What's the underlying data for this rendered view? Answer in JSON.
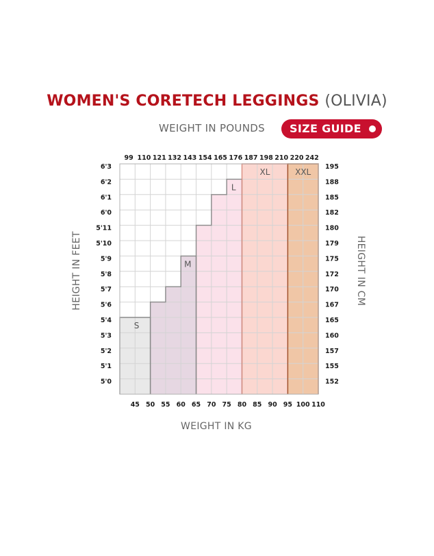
{
  "title": {
    "brand": "WOMEN'S CORETECH LEGGINGS",
    "model": "(OLIVIA)"
  },
  "subtitle": "WEIGHT IN POUNDS",
  "badge": "SIZE GUIDE",
  "chart_data": {
    "type": "heatmap",
    "x_bottom_label": "WEIGHT IN KG",
    "y_left_label": "HEIGHT IN FEET",
    "y_right_label": "HEIGHT IN CM",
    "x_kg_ticks": [
      45,
      50,
      55,
      60,
      65,
      70,
      75,
      80,
      85,
      90,
      95,
      100,
      110
    ],
    "x_lbs_ticks": [
      99,
      110,
      121,
      132,
      143,
      154,
      165,
      176,
      187,
      198,
      210,
      220,
      242
    ],
    "y_feet_ticks": [
      "5'0",
      "5'1",
      "5'2",
      "5'3",
      "5'4",
      "5'6",
      "5'7",
      "5'8",
      "5'9",
      "5'10",
      "5'11",
      "6'0",
      "6'1",
      "6'2",
      "6'3"
    ],
    "y_cm_ticks": [
      152,
      155,
      157,
      160,
      165,
      167,
      170,
      172,
      175,
      179,
      180,
      182,
      185,
      188,
      195
    ],
    "sizes": [
      {
        "name": "S",
        "kg_min": 40,
        "kg_max": 50,
        "max_height": "5'4",
        "color": "#e9e9e9",
        "border": "#8a8a8a"
      },
      {
        "name": "M",
        "kg_min": 50,
        "kg_max": 65,
        "max_height": "5'9",
        "color": "#e6d7e2",
        "border": "#8a8a8a",
        "steps": [
          {
            "kg_min": 50,
            "kg_max": 55,
            "max_height": "5'6"
          },
          {
            "kg_min": 55,
            "kg_max": 60,
            "max_height": "5'7"
          },
          {
            "kg_min": 60,
            "kg_max": 65,
            "max_height": "5'9"
          }
        ]
      },
      {
        "name": "L",
        "kg_min": 65,
        "kg_max": 80,
        "max_height": "6'2",
        "color": "#fbe1ea",
        "border": "#8a8a8a",
        "steps": [
          {
            "kg_min": 65,
            "kg_max": 70,
            "max_height": "5'11"
          },
          {
            "kg_min": 70,
            "kg_max": 75,
            "max_height": "6'1"
          },
          {
            "kg_min": 75,
            "kg_max": 80,
            "max_height": "6'2"
          }
        ]
      },
      {
        "name": "XL",
        "kg_min": 80,
        "kg_max": 95,
        "max_height": "6'3",
        "color": "#fbd7d0",
        "border": "#d98d7f"
      },
      {
        "name": "XXL",
        "kg_min": 95,
        "kg_max": 110,
        "max_height": "6'3",
        "color": "#f0c6a6",
        "border": "#a0522d"
      }
    ]
  }
}
